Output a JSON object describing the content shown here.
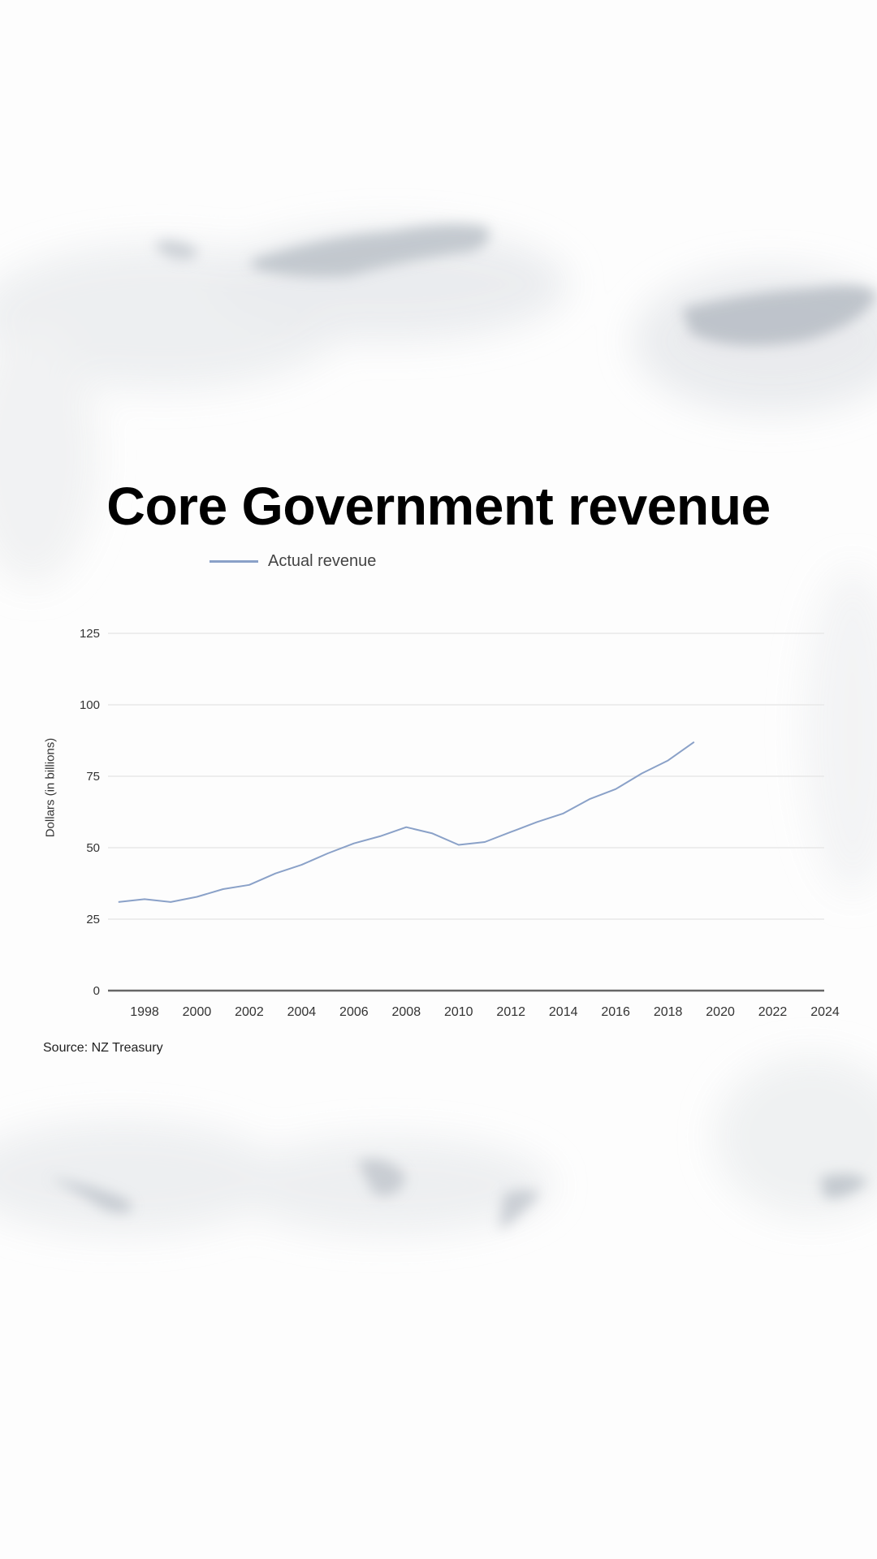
{
  "page": {
    "title": "Core Government revenue",
    "source": "Source: NZ Treasury"
  },
  "chart_data": {
    "type": "line",
    "title": "Core Government revenue",
    "xlabel": "",
    "ylabel": "Dollars (in billions)",
    "ylim": [
      0,
      125
    ],
    "xlim": [
      1997,
      2024
    ],
    "y_ticks": [
      0,
      25,
      50,
      75,
      100,
      125
    ],
    "x_ticks": [
      1998,
      2000,
      2002,
      2004,
      2006,
      2008,
      2010,
      2012,
      2014,
      2016,
      2018,
      2020,
      2022,
      2024
    ],
    "grid": true,
    "legend_position": "top-left",
    "series": [
      {
        "name": "Actual revenue",
        "color": "#8aa1c8",
        "x": [
          1997,
          1998,
          1999,
          2000,
          2001,
          2002,
          2003,
          2004,
          2005,
          2006,
          2007,
          2008,
          2009,
          2010,
          2011,
          2012,
          2013,
          2014,
          2015,
          2016,
          2017,
          2018,
          2019
        ],
        "values": [
          31,
          32,
          31,
          32.8,
          35.5,
          37,
          41,
          44,
          48,
          51.5,
          54,
          57.2,
          55,
          51,
          52,
          55.5,
          59,
          62,
          67,
          70.5,
          76,
          80.5,
          87
        ]
      }
    ],
    "source": "Source: NZ Treasury"
  }
}
